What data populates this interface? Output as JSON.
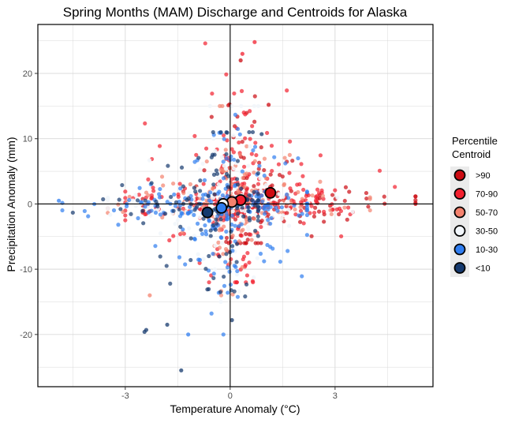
{
  "chart_data": {
    "type": "scatter",
    "title": "Spring Months (MAM) Discharge and Centroids for Alaska",
    "xlabel": "Temperature Anomaly (°C)",
    "ylabel": "Precipitation Anomaly (mm)",
    "xlim": [
      -5.5,
      5.8
    ],
    "ylim": [
      -28,
      27.5
    ],
    "x_ticks": [
      -3,
      0,
      3
    ],
    "y_ticks": [
      -20,
      -10,
      0,
      10,
      20
    ],
    "grid": true,
    "reference_lines": {
      "x": 0,
      "y": 0
    },
    "legend": {
      "title": [
        "Percentile",
        "Centroid"
      ],
      "position": "right"
    },
    "series": [
      {
        "name": ">90",
        "color": "#cc0b12",
        "spread": {
          "x": [
            -2.5,
            5.3
          ],
          "y": [
            -6,
            23
          ]
        }
      },
      {
        "name": "70-90",
        "color": "#f21f2e",
        "spread": {
          "x": [
            -3.0,
            5.0
          ],
          "y": [
            -12,
            25
          ]
        }
      },
      {
        "name": "50-70",
        "color": "#f4826e",
        "spread": {
          "x": [
            -3.5,
            4.0
          ],
          "y": [
            -14,
            15
          ]
        }
      },
      {
        "name": "30-50",
        "color": "#f2f6fb",
        "spread": {
          "x": [
            -3.5,
            3.5
          ],
          "y": [
            -15,
            15
          ]
        }
      },
      {
        "name": "10-30",
        "color": "#2f7df0",
        "spread": {
          "x": [
            -4.8,
            2.2
          ],
          "y": [
            -20,
            15
          ]
        }
      },
      {
        "name": "<10",
        "color": "#15396e",
        "spread": {
          "x": [
            -4.5,
            0.8
          ],
          "y": [
            -25.5,
            11
          ]
        }
      }
    ],
    "outliers": [
      {
        "x": 0.7,
        "y": 24.8,
        "series": "70-90"
      },
      {
        "x": 0.35,
        "y": 23.0,
        "series": "70-90"
      },
      {
        "x": 0.3,
        "y": 22.0,
        "series": ">90"
      },
      {
        "x": -1.4,
        "y": -25.5,
        "series": "<10"
      },
      {
        "x": -2.4,
        "y": -19.3,
        "series": "<10"
      },
      {
        "x": -2.45,
        "y": -19.6,
        "series": "<10"
      },
      {
        "x": -1.8,
        "y": -18.5,
        "series": "<10"
      },
      {
        "x": 0.05,
        "y": -17.8,
        "series": "<10"
      },
      {
        "x": -1.2,
        "y": -20.0,
        "series": "10-30"
      },
      {
        "x": -2.3,
        "y": -14.0,
        "series": "50-70"
      },
      {
        "x": 5.3,
        "y": 0.0,
        "series": ">90"
      },
      {
        "x": -4.9,
        "y": 0.5,
        "series": "10-30"
      },
      {
        "x": 1.1,
        "y": 15.2,
        "series": ">90"
      },
      {
        "x": 0.9,
        "y": 10.7,
        "series": "<10"
      }
    ],
    "centroids": [
      {
        "name": ">90",
        "x": 1.15,
        "y": 1.7
      },
      {
        "name": "70-90",
        "x": 0.3,
        "y": 0.6
      },
      {
        "name": "50-70",
        "x": 0.05,
        "y": 0.3
      },
      {
        "name": "30-50",
        "x": -0.2,
        "y": 0.0
      },
      {
        "name": "10-30",
        "x": -0.25,
        "y": -0.6
      },
      {
        "name": "<10",
        "x": -0.65,
        "y": -1.3
      }
    ]
  }
}
